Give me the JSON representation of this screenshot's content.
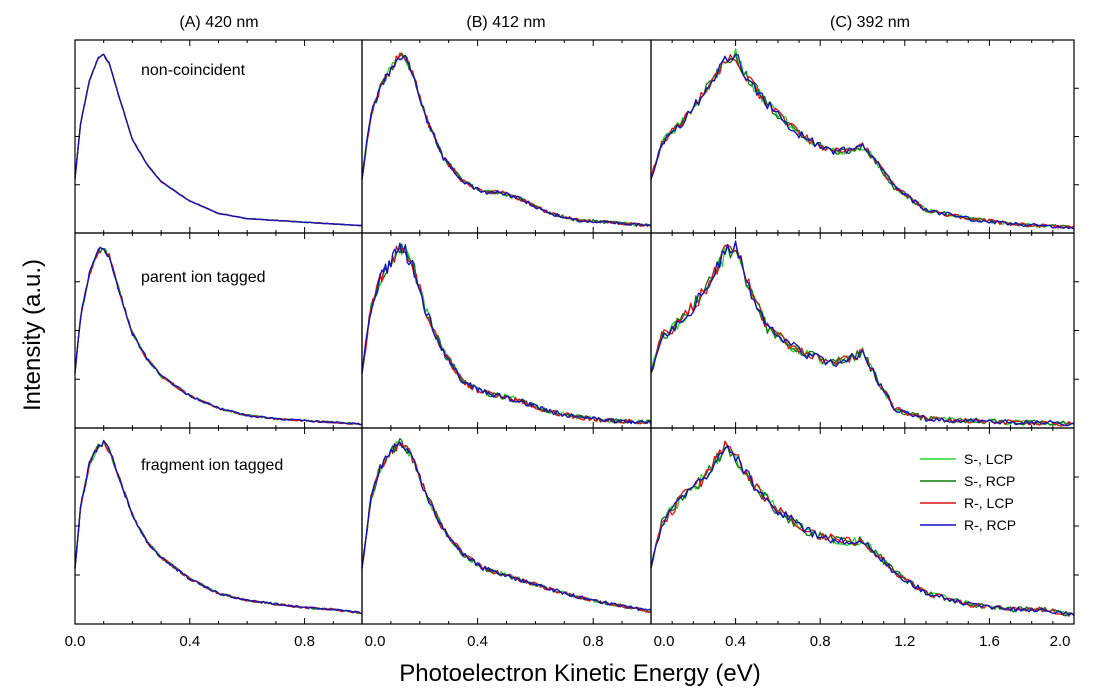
{
  "chart_data": {
    "type": "line",
    "xlabel": "Photoelectron Kinetic Energy (eV)",
    "ylabel": "Intensity (a.u.)",
    "columns": [
      {
        "title": "(A) 420 nm",
        "xlim": [
          0,
          1.0
        ],
        "ticks": [
          "0.0",
          "0.4",
          "0.8"
        ],
        "tick_values": [
          0,
          0.4,
          0.8
        ]
      },
      {
        "title": "(B) 412 nm",
        "xlim": [
          0,
          1.0
        ],
        "ticks": [
          "0.0",
          "0.4",
          "0.8"
        ],
        "tick_values": [
          0,
          0.4,
          0.8
        ]
      },
      {
        "title": "(C) 392 nm",
        "xlim": [
          0,
          2.0
        ],
        "ticks": [
          "0.0",
          "0.4",
          "0.8",
          "1.2",
          "1.6",
          "2.0"
        ],
        "tick_values": [
          0,
          0.4,
          0.8,
          1.2,
          1.6,
          2.0
        ]
      }
    ],
    "rows": [
      {
        "label": "non-coincident"
      },
      {
        "label": "parent ion tagged"
      },
      {
        "label": "fragment ion tagged"
      }
    ],
    "ylim": [
      0,
      1.05
    ],
    "legend": {
      "placement": "bottom-right panel, right side",
      "entries": [
        {
          "name": "S-, LCP",
          "color": "#22dd22"
        },
        {
          "name": "S-, RCP",
          "color": "#0a7a0a"
        },
        {
          "name": "R-, LCP",
          "color": "#e01010"
        },
        {
          "name": "R-, RCP",
          "color": "#1010c8"
        }
      ]
    },
    "series_order": [
      "S-, LCP",
      "S-, RCP",
      "R-, LCP",
      "R-, RCP"
    ],
    "panels": [
      {
        "row": 0,
        "col": 0,
        "x": [
          0,
          0.02,
          0.05,
          0.08,
          0.1,
          0.12,
          0.15,
          0.2,
          0.25,
          0.3,
          0.4,
          0.5,
          0.6,
          0.7,
          0.8,
          0.9,
          1.0
        ],
        "y": [
          0.3,
          0.62,
          0.85,
          0.98,
          1.0,
          0.95,
          0.78,
          0.52,
          0.38,
          0.28,
          0.17,
          0.1,
          0.07,
          0.06,
          0.05,
          0.04,
          0.03
        ]
      },
      {
        "row": 0,
        "col": 1,
        "x": [
          0,
          0.03,
          0.06,
          0.1,
          0.13,
          0.15,
          0.18,
          0.22,
          0.28,
          0.35,
          0.42,
          0.48,
          0.55,
          0.65,
          0.75,
          0.85,
          1.0
        ],
        "y": [
          0.3,
          0.65,
          0.8,
          0.92,
          1.0,
          0.98,
          0.88,
          0.65,
          0.42,
          0.28,
          0.22,
          0.22,
          0.18,
          0.1,
          0.06,
          0.05,
          0.03
        ]
      },
      {
        "row": 0,
        "col": 2,
        "x": [
          0,
          0.05,
          0.15,
          0.25,
          0.35,
          0.4,
          0.45,
          0.55,
          0.7,
          0.85,
          0.95,
          1.0,
          1.05,
          1.15,
          1.3,
          1.5,
          1.7,
          1.85,
          2.0
        ],
        "y": [
          0.3,
          0.5,
          0.62,
          0.78,
          0.97,
          1.0,
          0.88,
          0.72,
          0.55,
          0.45,
          0.46,
          0.48,
          0.42,
          0.25,
          0.12,
          0.07,
          0.04,
          0.03,
          0.02
        ]
      },
      {
        "row": 1,
        "col": 0,
        "x": [
          0,
          0.02,
          0.05,
          0.08,
          0.1,
          0.12,
          0.15,
          0.2,
          0.25,
          0.3,
          0.4,
          0.5,
          0.6,
          0.7,
          0.8,
          0.9,
          1.0
        ],
        "y": [
          0.3,
          0.62,
          0.85,
          0.98,
          1.0,
          0.95,
          0.78,
          0.52,
          0.38,
          0.28,
          0.17,
          0.1,
          0.06,
          0.04,
          0.03,
          0.02,
          0.01
        ]
      },
      {
        "row": 1,
        "col": 1,
        "x": [
          0,
          0.03,
          0.06,
          0.1,
          0.13,
          0.15,
          0.18,
          0.22,
          0.28,
          0.35,
          0.4,
          0.45,
          0.55,
          0.65,
          0.75,
          0.85,
          1.0
        ],
        "y": [
          0.3,
          0.65,
          0.82,
          0.92,
          1.0,
          0.98,
          0.88,
          0.65,
          0.42,
          0.25,
          0.2,
          0.18,
          0.14,
          0.08,
          0.05,
          0.03,
          0.02
        ]
      },
      {
        "row": 1,
        "col": 2,
        "x": [
          0,
          0.05,
          0.15,
          0.25,
          0.35,
          0.4,
          0.45,
          0.55,
          0.7,
          0.85,
          0.95,
          1.0,
          1.05,
          1.15,
          1.3,
          1.5,
          1.7,
          1.85,
          2.0
        ],
        "y": [
          0.3,
          0.5,
          0.6,
          0.75,
          0.97,
          1.0,
          0.82,
          0.55,
          0.42,
          0.35,
          0.38,
          0.42,
          0.3,
          0.1,
          0.04,
          0.03,
          0.02,
          0.02,
          0.01
        ]
      },
      {
        "row": 2,
        "col": 0,
        "x": [
          0,
          0.02,
          0.05,
          0.08,
          0.1,
          0.12,
          0.15,
          0.2,
          0.25,
          0.3,
          0.4,
          0.5,
          0.6,
          0.7,
          0.8,
          0.9,
          1.0
        ],
        "y": [
          0.3,
          0.65,
          0.88,
          0.98,
          1.0,
          0.96,
          0.82,
          0.6,
          0.45,
          0.36,
          0.24,
          0.16,
          0.12,
          0.1,
          0.08,
          0.07,
          0.05
        ]
      },
      {
        "row": 2,
        "col": 1,
        "x": [
          0,
          0.03,
          0.06,
          0.1,
          0.13,
          0.15,
          0.18,
          0.22,
          0.28,
          0.35,
          0.42,
          0.5,
          0.6,
          0.7,
          0.8,
          0.9,
          1.0
        ],
        "y": [
          0.3,
          0.68,
          0.85,
          0.95,
          1.0,
          0.98,
          0.9,
          0.72,
          0.52,
          0.38,
          0.3,
          0.26,
          0.21,
          0.16,
          0.12,
          0.09,
          0.06
        ]
      },
      {
        "row": 2,
        "col": 2,
        "x": [
          0,
          0.05,
          0.15,
          0.25,
          0.32,
          0.35,
          0.4,
          0.5,
          0.6,
          0.75,
          0.9,
          1.0,
          1.05,
          1.15,
          1.3,
          1.5,
          1.7,
          1.85,
          2.0
        ],
        "y": [
          0.3,
          0.55,
          0.7,
          0.8,
          0.92,
          1.0,
          0.92,
          0.75,
          0.62,
          0.5,
          0.45,
          0.45,
          0.4,
          0.28,
          0.16,
          0.1,
          0.07,
          0.07,
          0.04
        ]
      }
    ]
  }
}
